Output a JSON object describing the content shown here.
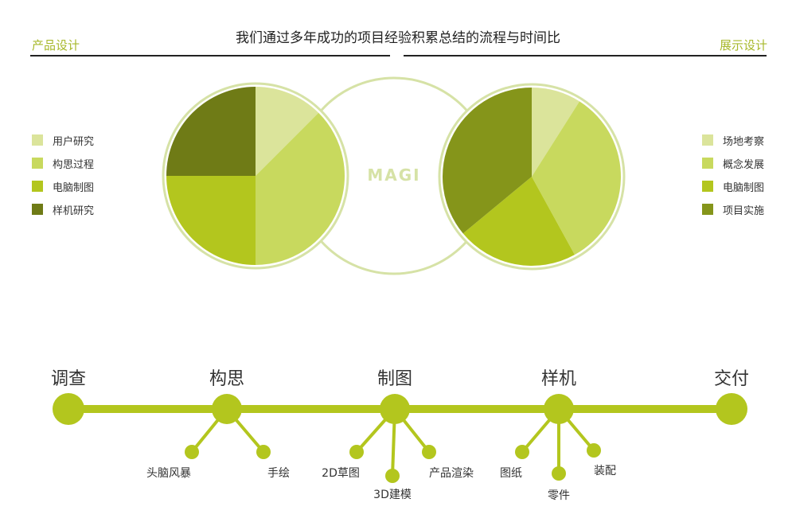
{
  "title": "我们通过多年成功的项目经验积累总结的流程与时间比",
  "left_section": "产品设计",
  "right_section": "展示设计",
  "logo": "MAGI",
  "colors": {
    "light": "#dbe49b",
    "mid": "#c8d95e",
    "bright": "#b3c61e",
    "dark_left": "#6f7b16",
    "dark_right": "#85951a",
    "ring": "#d6e2a6",
    "line": "#b3c61e"
  },
  "chart_data": [
    {
      "type": "pie",
      "legend": "left",
      "categories": [
        "用户研究",
        "构思过程",
        "电脑制图",
        "样机研究"
      ],
      "values": [
        12.5,
        37.5,
        25,
        25
      ]
    },
    {
      "type": "pie",
      "legend": "right",
      "categories": [
        "场地考察",
        "概念发展",
        "电脑制图",
        "项目实施"
      ],
      "values": [
        9,
        33,
        22,
        36
      ]
    }
  ],
  "timeline": {
    "stages": [
      "调查",
      "构思",
      "制图",
      "样机",
      "交付"
    ],
    "substeps": [
      {
        "stage": 1,
        "items": [
          "头脑风暴",
          "手绘"
        ]
      },
      {
        "stage": 2,
        "items": [
          "2D草图",
          "3D建模",
          "产品渲染"
        ]
      },
      {
        "stage": 3,
        "items": [
          "图纸",
          "零件",
          "装配"
        ]
      }
    ]
  }
}
